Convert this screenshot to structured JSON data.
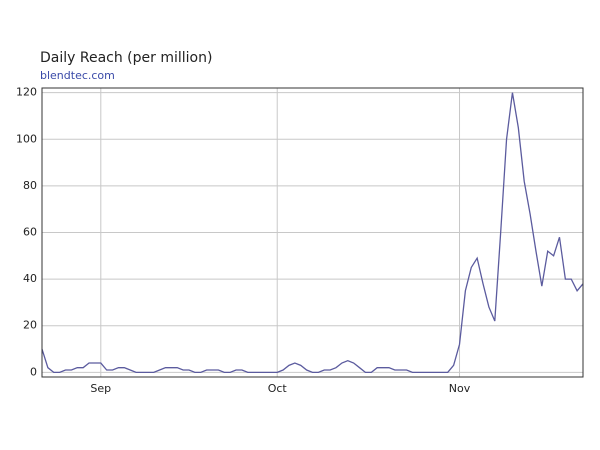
{
  "chart_data": {
    "type": "line",
    "title": "Daily Reach (per million)",
    "subtitle": "blendtec.com",
    "categories": [
      null,
      null,
      null,
      null,
      null,
      null,
      null,
      null,
      null,
      null,
      "Sep",
      null,
      null,
      null,
      null,
      null,
      null,
      null,
      null,
      null,
      null,
      null,
      null,
      null,
      null,
      null,
      null,
      null,
      null,
      null,
      null,
      null,
      null,
      null,
      null,
      null,
      null,
      null,
      null,
      null,
      "Oct",
      null,
      null,
      null,
      null,
      null,
      null,
      null,
      null,
      null,
      null,
      null,
      null,
      null,
      null,
      null,
      null,
      null,
      null,
      null,
      null,
      null,
      null,
      null,
      null,
      null,
      null,
      null,
      null,
      null,
      null,
      "Nov",
      null,
      null,
      null,
      null,
      null,
      null,
      null,
      null,
      null,
      null,
      null,
      null,
      null,
      null,
      null,
      null,
      null,
      null,
      null,
      null,
      null
    ],
    "values": [
      10,
      2,
      0,
      0,
      1,
      1,
      2,
      2,
      4,
      4,
      4,
      1,
      1,
      2,
      2,
      1,
      0,
      0,
      0,
      0,
      1,
      2,
      2,
      2,
      1,
      1,
      0,
      0,
      1,
      1,
      1,
      0,
      0,
      1,
      1,
      0,
      0,
      0,
      0,
      0,
      0,
      1,
      3,
      4,
      3,
      1,
      0,
      0,
      1,
      1,
      2,
      4,
      5,
      4,
      2,
      0,
      0,
      2,
      2,
      2,
      1,
      1,
      1,
      0,
      0,
      0,
      0,
      0,
      0,
      0,
      3,
      12,
      35,
      45,
      49,
      38,
      28,
      22,
      60,
      100,
      120,
      105,
      82,
      68,
      52,
      37,
      52,
      50,
      58,
      40,
      40,
      35,
      38
    ],
    "color": "#5b5b9e",
    "ylim": [
      -2,
      122
    ],
    "yticks": [
      0,
      20,
      40,
      60,
      80,
      100,
      120
    ],
    "grid": true
  }
}
